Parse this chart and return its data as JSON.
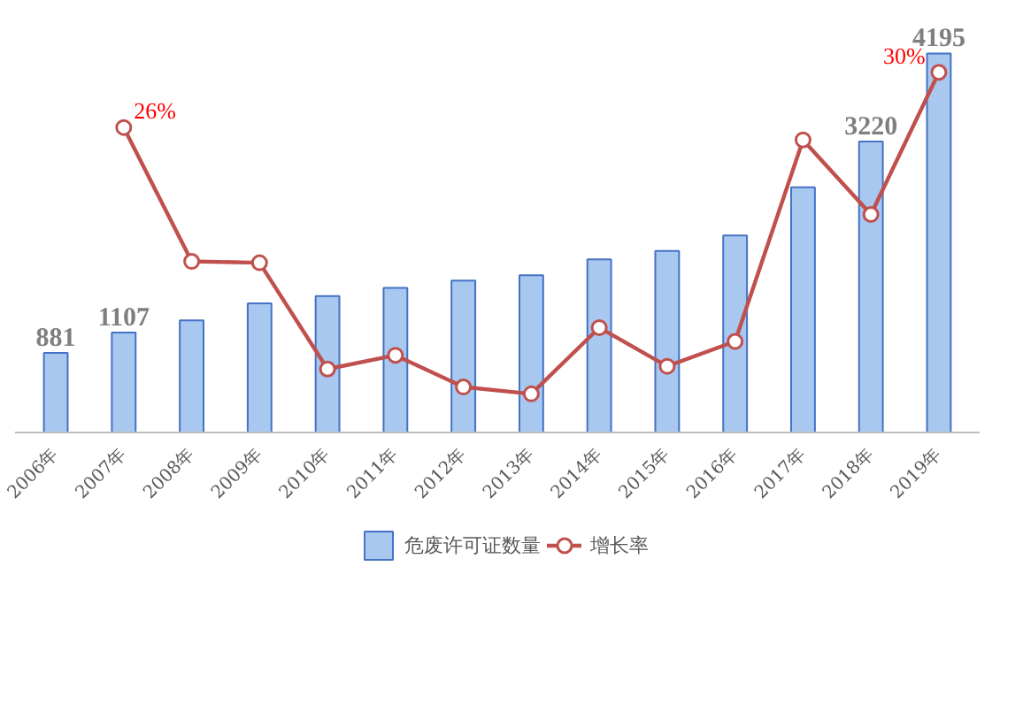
{
  "chart_data": {
    "type": "bar",
    "categories": [
      "2006年",
      "2007年",
      "2008年",
      "2009年",
      "2010年",
      "2011年",
      "2012年",
      "2013年",
      "2014年",
      "2015年",
      "2016年",
      "2017年",
      "2018年",
      "2019年"
    ],
    "series": [
      {
        "name": "危废许可证数量",
        "color": "#a9c8f0",
        "values": [
          881,
          1107,
          1240,
          1430,
          1510,
          1600,
          1680,
          1740,
          1915,
          2010,
          2180,
          2715,
          3220,
          4195
        ],
        "value_labels": [
          "881",
          "1107",
          null,
          null,
          null,
          null,
          null,
          null,
          null,
          null,
          null,
          null,
          "3220",
          "4195"
        ]
      },
      {
        "name": "增长率",
        "type": "line",
        "axis": "y2",
        "color": "#c0504d",
        "values": [
          null,
          26,
          16.3,
          16.2,
          8.5,
          9.5,
          7.2,
          6.7,
          11.5,
          8.7,
          10.5,
          25.1,
          19.7,
          30
        ],
        "value_labels": [
          null,
          "26%",
          null,
          null,
          null,
          null,
          null,
          null,
          null,
          null,
          null,
          null,
          null,
          "30%"
        ]
      }
    ],
    "tick_labels": "x",
    "grid": false,
    "legend": "bottom",
    "marker": "circle"
  }
}
